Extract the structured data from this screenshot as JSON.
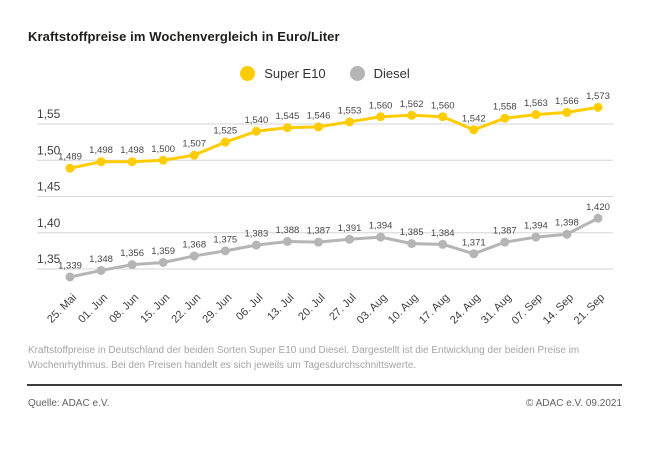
{
  "title": "Kraftstoffpreise im Wochenvergleich in Euro/Liter",
  "legend": [
    {
      "label": "Super E10",
      "color": "#ffcc00"
    },
    {
      "label": "Diesel",
      "color": "#b5b5b5"
    }
  ],
  "chart_data": {
    "type": "line",
    "title": "Kraftstoffpreise im Wochenvergleich in Euro/Liter",
    "unit": "Euro/Liter",
    "categories": [
      "25. Mai",
      "01. Jun",
      "08. Jun",
      "15. Jun",
      "22. Jun",
      "29. Jun",
      "06. Jul",
      "13. Jul",
      "20. Jul",
      "27. Jul",
      "03. Aug",
      "10. Aug",
      "17. Aug",
      "24. Aug",
      "31. Aug",
      "07. Sep",
      "14. Sep",
      "21. Sep"
    ],
    "series": [
      {
        "name": "Super E10",
        "color": "#ffcc00",
        "values": [
          1.489,
          1.498,
          1.498,
          1.5,
          1.507,
          1.525,
          1.54,
          1.545,
          1.546,
          1.553,
          1.56,
          1.562,
          1.56,
          1.542,
          1.558,
          1.563,
          1.566,
          1.573
        ]
      },
      {
        "name": "Diesel",
        "color": "#b5b5b5",
        "values": [
          1.339,
          1.348,
          1.356,
          1.359,
          1.368,
          1.375,
          1.383,
          1.388,
          1.387,
          1.391,
          1.394,
          1.385,
          1.384,
          1.371,
          1.387,
          1.394,
          1.398,
          1.42
        ]
      }
    ],
    "y_ticks": [
      1.55,
      1.5,
      1.45,
      1.4,
      1.35
    ],
    "ylim": [
      1.32,
      1.6
    ],
    "grid": true,
    "legend_position": "top",
    "decimal_separator": ",",
    "data_labels": true
  },
  "colors": {
    "grid": "#d6d6d6",
    "axis_text": "#404040",
    "data_label_text": "#474747"
  },
  "description": "Kraftstoffpreise in Deutschland der beiden Sorten Super E10 und Diesel. Dargestellt ist die Entwicklung der beiden Preise im Wochenrhythmus. Bei den Preisen handelt es sich jeweils um Tagesdurchschnittswerte.",
  "footer": {
    "source": "Quelle: ADAC e.V.",
    "copyright": "© ADAC e.V. 09.2021"
  }
}
